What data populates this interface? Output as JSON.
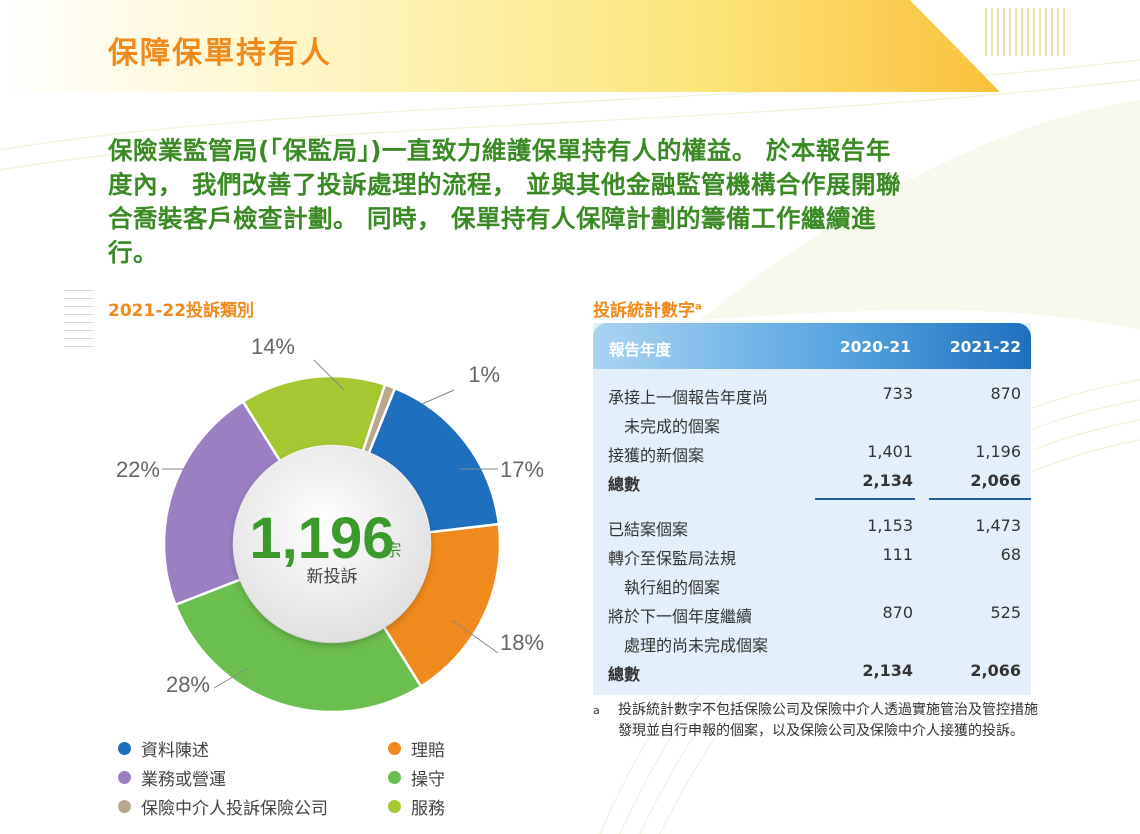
{
  "header": {
    "title": "保障保單持有人"
  },
  "intro": {
    "line1": "保險業監管局(「保監局」)一直致力維護保單持有人的權益。 於本報告年",
    "line2": "度內， 我們改善了投訴處理的流程， 並與其他金融監管機構合作展開聯",
    "line3": "合喬裝客戶檢查計劃。 同時， 保單持有人保障計劃的籌備工作繼續進",
    "line4": "行。"
  },
  "chart_data": {
    "type": "pie",
    "title": "2021-22投訴類別",
    "center_value": "1,196",
    "center_unit": "宗",
    "center_label": "新投訴",
    "categories": [
      "資料陳述",
      "理賠",
      "服務",
      "業務或營運",
      "保險中介人投訴保險公司",
      "操守"
    ],
    "slices": [
      {
        "name": "資料陳述",
        "value": 17,
        "label": "17%",
        "color": "#1f6fbf"
      },
      {
        "name": "理賠",
        "value": 18,
        "label": "18%",
        "color": "#f08a1c"
      },
      {
        "name": "操守",
        "value": 28,
        "label": "28%",
        "color": "#6bbf4e"
      },
      {
        "name": "業務或營運",
        "value": 22,
        "label": "22%",
        "color": "#9b7fc2"
      },
      {
        "name": "服務",
        "value": 14,
        "label": "14%",
        "color": "#a5c832"
      },
      {
        "name": "保險中介人投訴保險公司",
        "value": 1,
        "label": "1%",
        "color": "#b8a88e"
      }
    ],
    "legend": [
      {
        "label": "資料陳述",
        "color": "#1f6fbf"
      },
      {
        "label": "業務或營運",
        "color": "#9b7fc2"
      },
      {
        "label": "保險中介人投訴保險公司",
        "color": "#b8a88e"
      },
      {
        "label": "理賠",
        "color": "#f08a1c"
      },
      {
        "label": "操守",
        "color": "#6bbf4e"
      },
      {
        "label": "服務",
        "color": "#a5c832"
      }
    ]
  },
  "stats": {
    "title": "投訴統計數字",
    "title_mark": "a",
    "col_label": "報告年度",
    "col1": "2020-21",
    "col2": "2021-22",
    "rows": [
      {
        "label": "承接上一個報告年度尚",
        "v1": "733",
        "v2": "870"
      },
      {
        "label": "　未完成的個案",
        "v1": "",
        "v2": ""
      },
      {
        "label": "接獲的新個案",
        "v1": "1,401",
        "v2": "1,196"
      },
      {
        "label": "總數",
        "v1": "2,134",
        "v2": "2,066"
      },
      {
        "label": "已結案個案",
        "v1": "1,153",
        "v2": "1,473"
      },
      {
        "label": "轉介至保監局法規",
        "v1": "111",
        "v2": "68"
      },
      {
        "label": "　執行組的個案",
        "v1": "",
        "v2": ""
      },
      {
        "label": "將於下一個年度繼續",
        "v1": "870",
        "v2": "525"
      },
      {
        "label": "　處理的尚未完成個案",
        "v1": "",
        "v2": ""
      },
      {
        "label": "總數",
        "v1": "2,134",
        "v2": "2,066"
      }
    ],
    "footnote_mark": "a",
    "footnote": "投訴統計數字不包括保險公司及保險中介人透過實施管治及管控措施發現並自行申報的個案，以及保險公司及保險中介人接獲的投訴。"
  }
}
